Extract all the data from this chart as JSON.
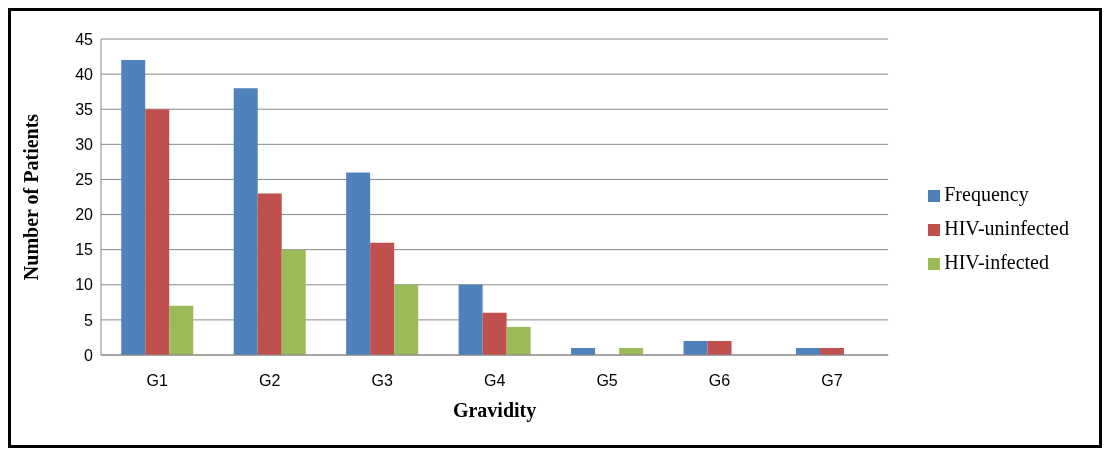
{
  "chart_data": {
    "type": "bar",
    "xlabel": "Gravidity",
    "ylabel": "Number of Patients",
    "categories": [
      "G1",
      "G2",
      "G3",
      "G4",
      "G5",
      "G6",
      "G7"
    ],
    "series": [
      {
        "name": "Frequency",
        "color": "#4f81bd",
        "values": [
          42,
          38,
          26,
          10,
          1,
          2,
          1
        ]
      },
      {
        "name": "HIV-uninfected",
        "color": "#c0504d",
        "values": [
          35,
          23,
          16,
          6,
          0,
          2,
          1
        ]
      },
      {
        "name": "HIV-infected",
        "color": "#9bbb59",
        "values": [
          7,
          15,
          10,
          4,
          1,
          0,
          0
        ]
      }
    ],
    "ylim": [
      0,
      45
    ],
    "yticks": [
      0,
      5,
      10,
      15,
      20,
      25,
      30,
      35,
      40,
      45
    ],
    "grid": "y",
    "legend": "right"
  }
}
